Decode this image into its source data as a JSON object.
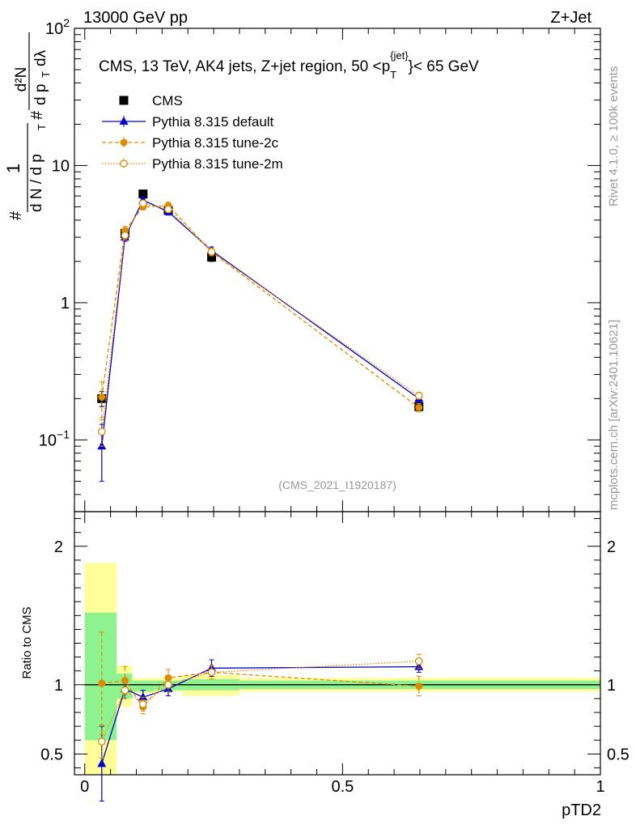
{
  "header": {
    "left": "13000 GeV pp",
    "right": "Z+Jet"
  },
  "side": {
    "rivet": "Rivet 4.1.0, ≥ 100k events",
    "mcplots": "mcplots.cern.ch [arXiv:2401.10621]"
  },
  "colors": {
    "data": "#000000",
    "default": "#0000cc",
    "tune2c": "#e08a00",
    "tune2m": "#e08a00",
    "band_inner": "#8ef28e",
    "band_outer": "#ffff99"
  },
  "chart_data": [
    {
      "type": "line",
      "title": "CMS, 13 TeV, AK4 jets, Z+jet region, 50 <p_T^{jet}< 65 GeV",
      "title_parts": {
        "main": "CMS, 13 TeV, AK4 jets, Z+jet region, 50 <p",
        "sub": "T",
        "sup": "{jet}",
        "tail": "}< 65 GeV"
      },
      "ylabel": "1/(dN/dpT) d²N/(dpT dλ)",
      "ylabel_parts": {
        "one": "1",
        "dn": "d N / d p",
        "t": "T",
        "d2n": "d²N",
        "dpt": "d p",
        "dl": "dλ",
        "hash": "#"
      },
      "yscale": "log",
      "ylim": [
        0.03,
        100
      ],
      "xlim": [
        -0.02,
        1.0
      ],
      "yticks": [
        {
          "v": 0.1,
          "base": "10",
          "exp": "−1"
        },
        {
          "v": 1,
          "base": "1",
          "exp": ""
        },
        {
          "v": 10,
          "base": "10",
          "exp": ""
        },
        {
          "v": 100,
          "base": "10",
          "exp": "2"
        }
      ],
      "reference": "(CMS_2021_I1920187)",
      "legend_position": "top-left",
      "legend": [
        "CMS",
        "Pythia 8.315 default",
        "Pythia 8.315 tune-2c",
        "Pythia 8.315 tune-2m"
      ],
      "series": [
        {
          "name": "CMS",
          "style": "data",
          "x": [
            0.033,
            0.078,
            0.113,
            0.162,
            0.246,
            0.648
          ],
          "y": [
            0.2,
            3.2,
            6.2,
            4.7,
            2.15,
            0.175
          ],
          "yerr": [
            0.025,
            0.25,
            0.4,
            0.3,
            0.15,
            0.012
          ]
        },
        {
          "name": "Pythia 8.315 default",
          "style": "default",
          "x": [
            0.033,
            0.078,
            0.113,
            0.162,
            0.246,
            0.648
          ],
          "y": [
            0.09,
            3.0,
            5.6,
            4.6,
            2.4,
            0.2
          ],
          "yerr": [
            0.04,
            0.2,
            0.3,
            0.25,
            0.15,
            0.012
          ]
        },
        {
          "name": "Pythia 8.315 tune-2c",
          "style": "tune2c",
          "x": [
            0.033,
            0.078,
            0.113,
            0.162,
            0.246,
            0.648
          ],
          "y": [
            0.205,
            3.35,
            5.0,
            5.1,
            2.35,
            0.172
          ],
          "yerr": [
            0.06,
            0.25,
            0.25,
            0.3,
            0.15,
            0.012
          ]
        },
        {
          "name": "Pythia 8.315 tune-2m",
          "style": "tune2m",
          "x": [
            0.033,
            0.078,
            0.113,
            0.162,
            0.246,
            0.648
          ],
          "y": [
            0.115,
            3.1,
            5.3,
            4.8,
            2.35,
            0.21
          ],
          "yerr": [
            0.025,
            0.2,
            0.25,
            0.25,
            0.15,
            0.012
          ]
        }
      ]
    },
    {
      "type": "line",
      "title": "",
      "ylabel": "Ratio to CMS",
      "xlabel": "pTD2",
      "yscale": "linear",
      "ylim": [
        0.35,
        2.25
      ],
      "xlim": [
        -0.02,
        1.0
      ],
      "yticks": [
        {
          "v": 0.5,
          "label": "0.5"
        },
        {
          "v": 1,
          "label": "1"
        },
        {
          "v": 2,
          "label": "2"
        }
      ],
      "xticks": [
        {
          "v": 0,
          "label": "0"
        },
        {
          "v": 0.5,
          "label": "0.5"
        },
        {
          "v": 1,
          "label": "1"
        }
      ],
      "bands": [
        {
          "x0": 0.0,
          "x1": 0.062,
          "inner": [
            0.6,
            1.52
          ],
          "outer": [
            0.35,
            1.88
          ]
        },
        {
          "x0": 0.062,
          "x1": 0.092,
          "inner": [
            0.9,
            1.08
          ],
          "outer": [
            0.84,
            1.14
          ]
        },
        {
          "x0": 0.092,
          "x1": 0.135,
          "inner": [
            0.95,
            1.03
          ],
          "outer": [
            0.94,
            1.05
          ]
        },
        {
          "x0": 0.135,
          "x1": 0.19,
          "inner": [
            0.96,
            1.03
          ],
          "outer": [
            0.95,
            1.05
          ]
        },
        {
          "x0": 0.19,
          "x1": 0.3,
          "inner": [
            0.96,
            1.04
          ],
          "outer": [
            0.92,
            1.07
          ]
        },
        {
          "x0": 0.3,
          "x1": 1.0,
          "inner": [
            0.97,
            1.03
          ],
          "outer": [
            0.95,
            1.05
          ]
        }
      ],
      "series": [
        {
          "name": "Pythia 8.315 default",
          "style": "default",
          "x": [
            0.033,
            0.078,
            0.113,
            0.162,
            0.246,
            0.648
          ],
          "y": [
            0.43,
            0.97,
            0.91,
            0.97,
            1.12,
            1.13
          ],
          "yerr": [
            0.27,
            0.07,
            0.05,
            0.05,
            0.06,
            0.04
          ]
        },
        {
          "name": "Pythia 8.315 tune-2c",
          "style": "tune2c",
          "x": [
            0.033,
            0.078,
            0.113,
            0.162,
            0.246,
            0.648
          ],
          "y": [
            1.01,
            1.03,
            0.84,
            1.05,
            1.09,
            0.99
          ],
          "yerr": [
            0.37,
            0.1,
            0.05,
            0.06,
            0.05,
            0.07
          ]
        },
        {
          "name": "Pythia 8.315 tune-2m",
          "style": "tune2m",
          "x": [
            0.033,
            0.078,
            0.113,
            0.162,
            0.246,
            0.648
          ],
          "y": [
            0.59,
            0.96,
            0.86,
            1.0,
            1.09,
            1.17
          ],
          "yerr": [
            0.12,
            0.06,
            0.05,
            0.05,
            0.05,
            0.05
          ]
        }
      ]
    }
  ]
}
